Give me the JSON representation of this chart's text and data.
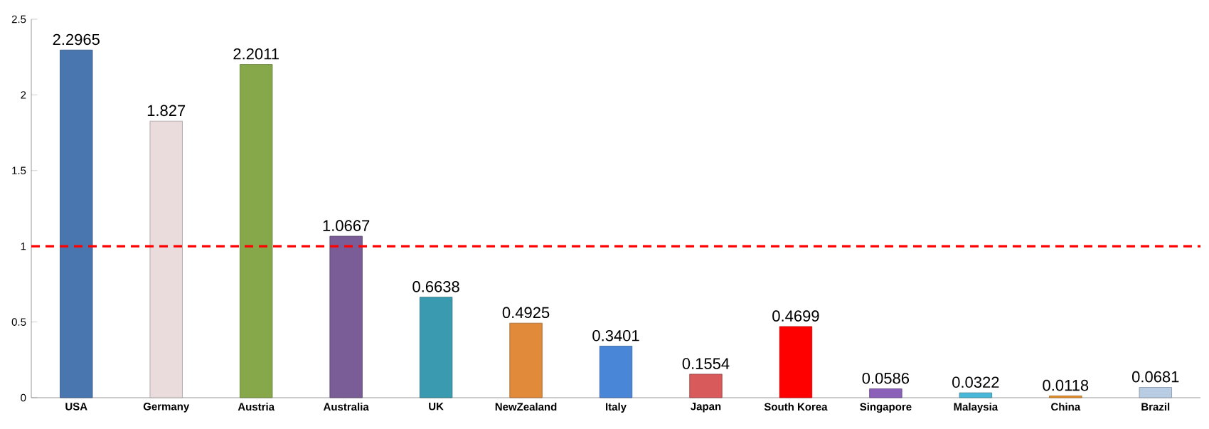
{
  "chart_data": {
    "type": "bar",
    "categories": [
      "USA",
      "Germany",
      "Austria",
      "Australia",
      "UK",
      "NewZealand",
      "Italy",
      "Japan",
      "South Korea",
      "Singapore",
      "Malaysia",
      "China",
      "Brazil"
    ],
    "values": [
      2.2965,
      1.827,
      2.2011,
      1.0667,
      0.6638,
      0.4925,
      0.3401,
      0.1554,
      0.4699,
      0.0586,
      0.0322,
      0.0118,
      0.0681
    ],
    "colors": [
      "#4a76b0",
      "#eadcdc",
      "#86a84a",
      "#7a5c96",
      "#3a9bb0",
      "#e08a3a",
      "#4a86d8",
      "#d85a5a",
      "#ff0000",
      "#8a60b8",
      "#48b8d8",
      "#e8902a",
      "#b8cce4"
    ],
    "data_labels": true,
    "ylim": [
      0,
      2.5
    ],
    "yticks": [
      0,
      0.5,
      1,
      1.5,
      2,
      2.5
    ],
    "ref_lines": [
      {
        "axis": "y",
        "value": 1,
        "color": "#ff0000",
        "line_style": "dashed"
      }
    ]
  }
}
